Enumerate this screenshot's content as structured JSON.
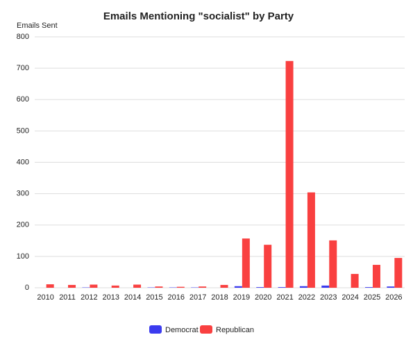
{
  "chart_data": {
    "type": "bar",
    "title": "Emails Mentioning \"socialist\" by Party",
    "y_label": "Emails Sent",
    "categories": [
      "2010",
      "2011",
      "2012",
      "2013",
      "2014",
      "2015",
      "2016",
      "2017",
      "2018",
      "2019",
      "2020",
      "2021",
      "2022",
      "2023",
      "2024",
      "2025",
      "2026"
    ],
    "series": [
      {
        "name": "Democrat",
        "color": "#3b3bef",
        "values": [
          0,
          0,
          1,
          0,
          0,
          1,
          1,
          1,
          0,
          5,
          2,
          2,
          5,
          7,
          0,
          2,
          4
        ]
      },
      {
        "name": "Republican",
        "color": "#f94040",
        "values": [
          11,
          9,
          10,
          7,
          10,
          4,
          3,
          4,
          9,
          157,
          137,
          723,
          304,
          151,
          44,
          73,
          95
        ]
      }
    ],
    "ylim": [
      0,
      800
    ],
    "yticks": [
      0,
      100,
      200,
      300,
      400,
      500,
      600,
      700,
      800
    ],
    "grid": true,
    "legend": "bottom"
  }
}
